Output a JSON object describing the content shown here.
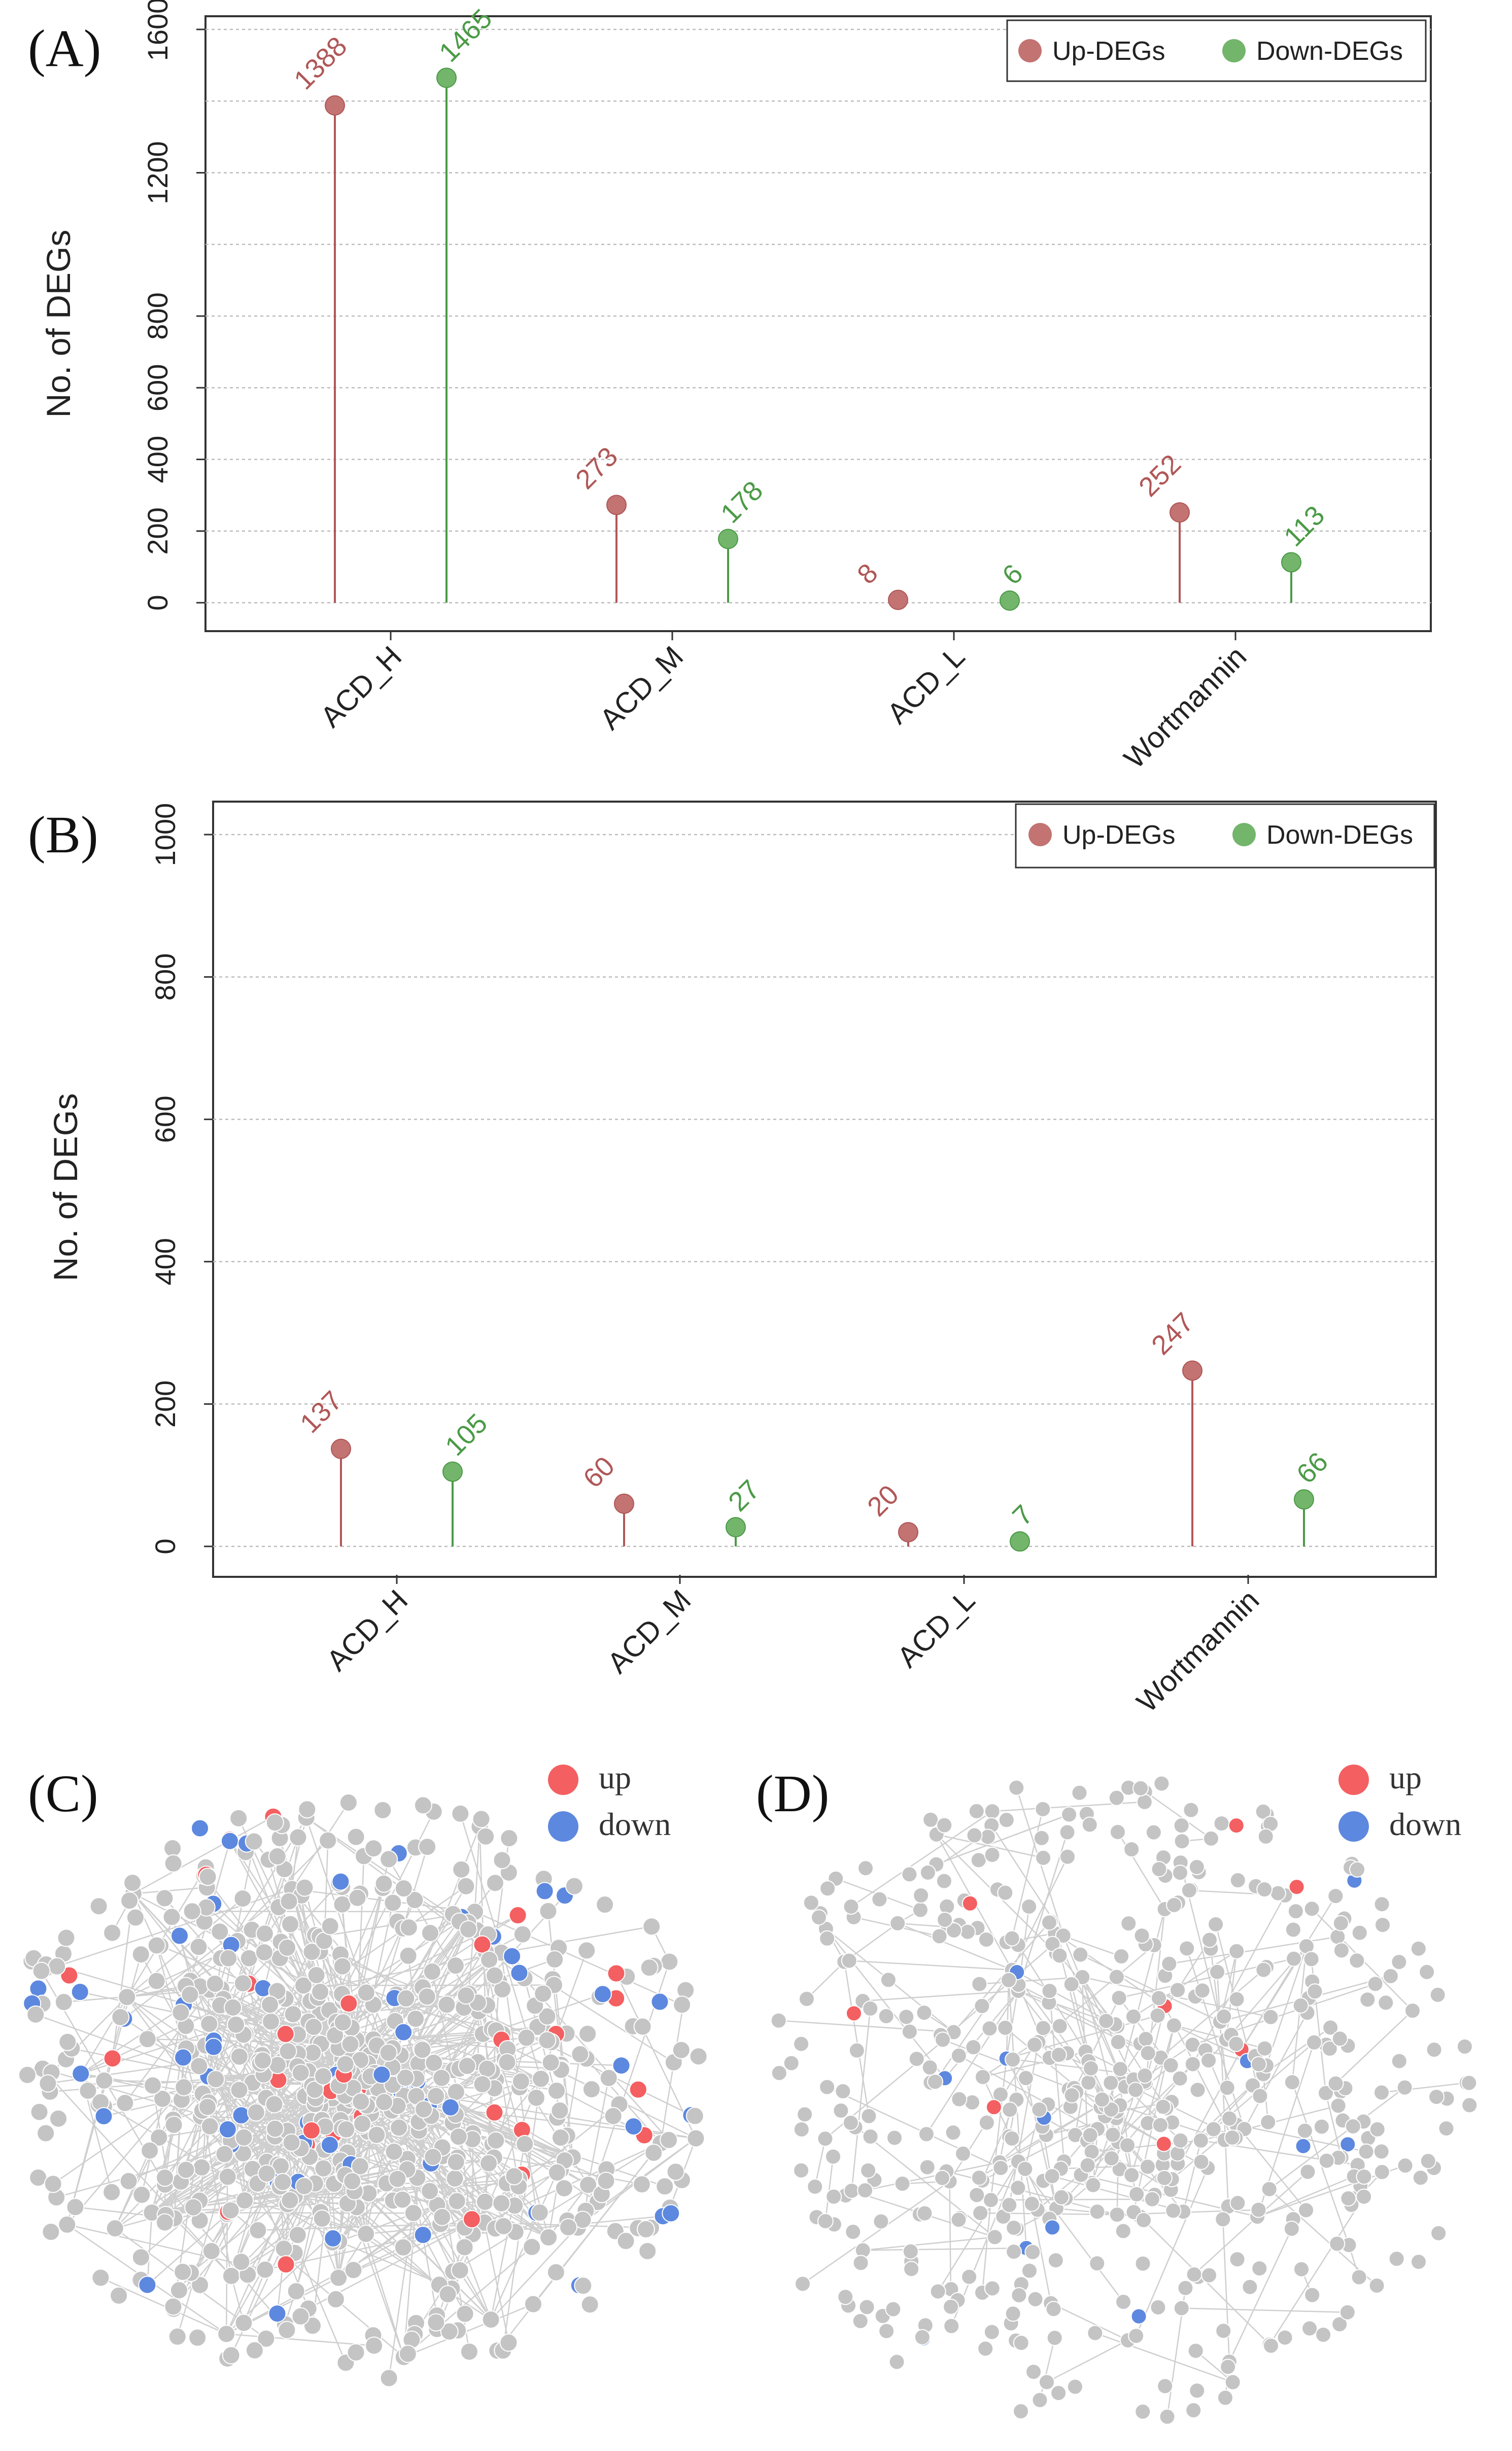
{
  "colors": {
    "up": "#b05757",
    "up_dot": "#c27372",
    "down": "#4b9a46",
    "down_dot": "#72b56b",
    "net_up": "#f45f61",
    "net_down": "#5d88df",
    "net_node": "#c4c4c4",
    "net_edge": "#cfcfcf"
  },
  "chart_data": [
    {
      "panel": "(A)",
      "type": "lollipop",
      "ylabel": "No. of DEGs",
      "ylim": [
        0,
        1600
      ],
      "yticks": [
        "0",
        "200",
        "400",
        "600",
        "800",
        "1200",
        "1600"
      ],
      "ytick_values": [
        0,
        200,
        400,
        600,
        800,
        1200,
        1600
      ],
      "grid_values": [
        0,
        200,
        400,
        600,
        800,
        1000,
        1200,
        1400,
        1600
      ],
      "categories": [
        "ACD_H",
        "ACD_M",
        "ACD_L",
        "Wortmannin"
      ],
      "series": [
        {
          "name": "Up-DEGs",
          "values": [
            1388,
            273,
            8,
            252
          ]
        },
        {
          "name": "Down-DEGs",
          "values": [
            1465,
            178,
            6,
            113
          ]
        }
      ],
      "legend": [
        "Up-DEGs",
        "Down-DEGs"
      ],
      "legend_position": "top-right"
    },
    {
      "panel": "(B)",
      "type": "lollipop",
      "ylabel": "No. of DEGs",
      "ylim": [
        0,
        1000
      ],
      "yticks": [
        "0",
        "200",
        "400",
        "600",
        "800",
        "1000"
      ],
      "ytick_values": [
        0,
        200,
        400,
        600,
        800,
        1000
      ],
      "grid_values": [
        0,
        200,
        400,
        600,
        800,
        1000
      ],
      "categories": [
        "ACD_H",
        "ACD_M",
        "ACD_L",
        "Wortmannin"
      ],
      "series": [
        {
          "name": "Up-DEGs",
          "values": [
            137,
            60,
            20,
            247
          ]
        },
        {
          "name": "Down-DEGs",
          "values": [
            105,
            27,
            7,
            66
          ]
        }
      ],
      "legend": [
        "Up-DEGs",
        "Down-DEGs"
      ],
      "legend_position": "top-right"
    }
  ],
  "networks": [
    {
      "panel": "(C)",
      "legend": [
        "up",
        "down"
      ]
    },
    {
      "panel": "(D)",
      "legend": [
        "up",
        "down"
      ]
    }
  ]
}
